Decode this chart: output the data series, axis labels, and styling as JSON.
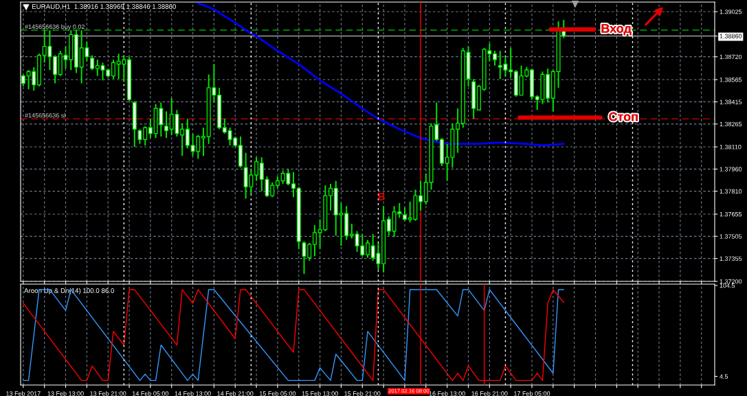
{
  "chart_data": [
    {
      "type": "candlestick",
      "title": "EURAUD,H1  1.38916 1.38969 1.38846 1.38860",
      "color": "#00e600",
      "grid": true,
      "tick_labels": "y",
      "x": [
        "2017-02-13T05:00",
        "2017-02-13T06:00",
        "2017-02-13T07:00",
        "2017-02-13T08:00",
        "2017-02-13T09:00",
        "2017-02-13T10:00",
        "2017-02-13T11:00",
        "2017-02-13T12:00",
        "2017-02-13T13:00",
        "2017-02-13T14:00",
        "2017-02-13T15:00",
        "2017-02-13T16:00",
        "2017-02-13T17:00",
        "2017-02-13T18:00",
        "2017-02-13T19:00",
        "2017-02-13T20:00",
        "2017-02-13T21:00",
        "2017-02-13T22:00",
        "2017-02-13T23:00",
        "2017-02-14T00:00",
        "2017-02-14T01:00",
        "2017-02-14T02:00",
        "2017-02-14T03:00",
        "2017-02-14T04:00",
        "2017-02-14T05:00",
        "2017-02-14T06:00",
        "2017-02-14T07:00",
        "2017-02-14T08:00",
        "2017-02-14T09:00",
        "2017-02-14T10:00",
        "2017-02-14T11:00",
        "2017-02-14T12:00",
        "2017-02-14T13:00",
        "2017-02-14T14:00",
        "2017-02-14T15:00",
        "2017-02-14T16:00",
        "2017-02-14T17:00",
        "2017-02-14T18:00",
        "2017-02-14T19:00",
        "2017-02-14T20:00",
        "2017-02-14T21:00",
        "2017-02-14T22:00",
        "2017-02-14T23:00",
        "2017-02-15T00:00",
        "2017-02-15T01:00",
        "2017-02-15T02:00",
        "2017-02-15T03:00",
        "2017-02-15T04:00",
        "2017-02-15T05:00",
        "2017-02-15T06:00",
        "2017-02-15T07:00",
        "2017-02-15T08:00",
        "2017-02-15T09:00",
        "2017-02-15T10:00",
        "2017-02-15T11:00",
        "2017-02-15T12:00",
        "2017-02-15T13:00",
        "2017-02-15T14:00",
        "2017-02-15T15:00",
        "2017-02-15T16:00",
        "2017-02-15T17:00",
        "2017-02-15T18:00",
        "2017-02-15T19:00",
        "2017-02-15T20:00",
        "2017-02-15T21:00",
        "2017-02-15T22:00",
        "2017-02-15T23:00",
        "2017-02-16T00:00",
        "2017-02-16T01:00",
        "2017-02-16T02:00",
        "2017-02-16T03:00",
        "2017-02-16T04:00",
        "2017-02-16T05:00",
        "2017-02-16T06:00",
        "2017-02-16T07:00",
        "2017-02-16T08:00",
        "2017-02-16T09:00",
        "2017-02-16T10:00",
        "2017-02-16T11:00",
        "2017-02-16T12:00",
        "2017-02-16T13:00",
        "2017-02-16T14:00",
        "2017-02-16T15:00",
        "2017-02-16T16:00",
        "2017-02-16T17:00",
        "2017-02-16T18:00",
        "2017-02-16T19:00",
        "2017-02-16T20:00",
        "2017-02-16T21:00",
        "2017-02-16T22:00",
        "2017-02-16T23:00",
        "2017-02-17T00:00",
        "2017-02-17T01:00",
        "2017-02-17T02:00",
        "2017-02-17T03:00",
        "2017-02-17T04:00",
        "2017-02-17T05:00",
        "2017-02-17T06:00",
        "2017-02-17T07:00",
        "2017-02-17T08:00",
        "2017-02-17T09:00",
        "2017-02-17T10:00",
        "2017-02-17T11:00"
      ],
      "ohlc": [
        [
          1.3859,
          1.386,
          1.3852,
          1.3854
        ],
        [
          1.3859,
          1.3863,
          1.385,
          1.3862
        ],
        [
          1.3862,
          1.3865,
          1.3849,
          1.3853
        ],
        [
          1.3853,
          1.3874,
          1.3852,
          1.3873
        ],
        [
          1.3873,
          1.389,
          1.3868,
          1.3879
        ],
        [
          1.3879,
          1.389,
          1.3863,
          1.3872
        ],
        [
          1.3872,
          1.3873,
          1.3854,
          1.386
        ],
        [
          1.386,
          1.3876,
          1.3859,
          1.3874
        ],
        [
          1.3873,
          1.3879,
          1.3864,
          1.387
        ],
        [
          1.387,
          1.389,
          1.3863,
          1.3887
        ],
        [
          1.3887,
          1.389,
          1.3861,
          1.3865
        ],
        [
          1.3865,
          1.389,
          1.3854,
          1.3878
        ],
        [
          1.3878,
          1.3882,
          1.3869,
          1.3872
        ],
        [
          1.3871,
          1.3873,
          1.3863,
          1.3864
        ],
        [
          1.3864,
          1.387,
          1.3859,
          1.3866
        ],
        [
          1.3866,
          1.3868,
          1.3856,
          1.3863
        ],
        [
          1.3863,
          1.3864,
          1.3858,
          1.3859
        ],
        [
          1.3859,
          1.387,
          1.3857,
          1.3868
        ],
        [
          1.3867,
          1.3874,
          1.3857,
          1.3869
        ],
        [
          1.3867,
          1.3873,
          1.3855,
          1.387
        ],
        [
          1.387,
          1.3872,
          1.3842,
          1.3843
        ],
        [
          1.3841,
          1.3842,
          1.3811,
          1.3823
        ],
        [
          1.3822,
          1.3823,
          1.3813,
          1.3816
        ],
        [
          1.3816,
          1.3825,
          1.3812,
          1.3824
        ],
        [
          1.3824,
          1.383,
          1.3817,
          1.382
        ],
        [
          1.382,
          1.384,
          1.3817,
          1.3837
        ],
        [
          1.3837,
          1.3841,
          1.3818,
          1.3826
        ],
        [
          1.3825,
          1.3835,
          1.3817,
          1.3822
        ],
        [
          1.3823,
          1.3844,
          1.3819,
          1.3833
        ],
        [
          1.3833,
          1.3836,
          1.3818,
          1.382
        ],
        [
          1.3819,
          1.3827,
          1.3805,
          1.3823
        ],
        [
          1.3823,
          1.383,
          1.381,
          1.3812
        ],
        [
          1.3812,
          1.382,
          1.3805,
          1.3808
        ],
        [
          1.3808,
          1.3819,
          1.3803,
          1.3818
        ],
        [
          1.3817,
          1.3824,
          1.3805,
          1.3818
        ],
        [
          1.3818,
          1.386,
          1.3813,
          1.3851
        ],
        [
          1.3851,
          1.3867,
          1.3841,
          1.3846
        ],
        [
          1.3846,
          1.3851,
          1.3823,
          1.3824
        ],
        [
          1.3824,
          1.383,
          1.382,
          1.3821
        ],
        [
          1.3822,
          1.3824,
          1.3812,
          1.3816
        ],
        [
          1.3817,
          1.3818,
          1.3811,
          1.3812
        ],
        [
          1.3812,
          1.3818,
          1.3797,
          1.3798
        ],
        [
          1.3797,
          1.3807,
          1.3776,
          1.3784
        ],
        [
          1.3784,
          1.3795,
          1.3779,
          1.3792
        ],
        [
          1.3792,
          1.3804,
          1.3788,
          1.3801
        ],
        [
          1.38,
          1.3804,
          1.3781,
          1.3789
        ],
        [
          1.3789,
          1.3791,
          1.3777,
          1.3778
        ],
        [
          1.3778,
          1.3787,
          1.3777,
          1.3785
        ],
        [
          1.3785,
          1.3791,
          1.3783,
          1.3788
        ],
        [
          1.3788,
          1.3795,
          1.3786,
          1.3793
        ],
        [
          1.3793,
          1.3796,
          1.3785,
          1.3786
        ],
        [
          1.3786,
          1.3794,
          1.3777,
          1.3783
        ],
        [
          1.3783,
          1.3784,
          1.3742,
          1.3747
        ],
        [
          1.3746,
          1.3747,
          1.3725,
          1.3737
        ],
        [
          1.3736,
          1.3746,
          1.3734,
          1.3745
        ],
        [
          1.3745,
          1.3758,
          1.3737,
          1.3753
        ],
        [
          1.3753,
          1.3762,
          1.3742,
          1.3755
        ],
        [
          1.3755,
          1.3785,
          1.3754,
          1.3778
        ],
        [
          1.3778,
          1.3786,
          1.3768,
          1.3783
        ],
        [
          1.3783,
          1.3788,
          1.3751,
          1.3765
        ],
        [
          1.3765,
          1.3773,
          1.3744,
          1.3766
        ],
        [
          1.3766,
          1.3771,
          1.3748,
          1.3751
        ],
        [
          1.3751,
          1.3759,
          1.3749,
          1.3752
        ],
        [
          1.3752,
          1.3754,
          1.374,
          1.3744
        ],
        [
          1.3744,
          1.3752,
          1.3737,
          1.3738
        ],
        [
          1.3738,
          1.3748,
          1.3736,
          1.3746
        ],
        [
          1.3744,
          1.3752,
          1.3734,
          1.3736
        ],
        [
          1.3739,
          1.3746,
          1.3728,
          1.3732
        ],
        [
          1.3732,
          1.3771,
          1.3726,
          1.3761
        ],
        [
          1.3762,
          1.3764,
          1.3751,
          1.3754
        ],
        [
          1.3754,
          1.3771,
          1.375,
          1.3767
        ],
        [
          1.3767,
          1.3773,
          1.3763,
          1.3766
        ],
        [
          1.3765,
          1.377,
          1.3761,
          1.3762
        ],
        [
          1.3762,
          1.3774,
          1.376,
          1.3763
        ],
        [
          1.3762,
          1.3782,
          1.3761,
          1.3778
        ],
        [
          1.3778,
          1.3788,
          1.3768,
          1.3774
        ],
        [
          1.3774,
          1.3793,
          1.3772,
          1.3787
        ],
        [
          1.3787,
          1.3827,
          1.3782,
          1.3825
        ],
        [
          1.3826,
          1.3841,
          1.3815,
          1.3816
        ],
        [
          1.3816,
          1.3817,
          1.3798,
          1.38
        ],
        [
          1.38,
          1.3813,
          1.3788,
          1.3804
        ],
        [
          1.3804,
          1.3827,
          1.3797,
          1.3823
        ],
        [
          1.3823,
          1.3837,
          1.3807,
          1.3827
        ],
        [
          1.3827,
          1.3878,
          1.3824,
          1.3876
        ],
        [
          1.3875,
          1.3879,
          1.3852,
          1.3857
        ],
        [
          1.3855,
          1.3857,
          1.383,
          1.3837
        ],
        [
          1.3836,
          1.3853,
          1.3836,
          1.3852
        ],
        [
          1.385,
          1.3878,
          1.3849,
          1.3877
        ],
        [
          1.3876,
          1.3881,
          1.3869,
          1.3874
        ],
        [
          1.3874,
          1.3876,
          1.3866,
          1.387
        ],
        [
          1.3866,
          1.3876,
          1.3857,
          1.3865
        ],
        [
          1.3867,
          1.3872,
          1.3859,
          1.3863
        ],
        [
          1.3863,
          1.3878,
          1.3858,
          1.3862
        ],
        [
          1.3862,
          1.3863,
          1.3845,
          1.3846
        ],
        [
          1.3846,
          1.3866,
          1.3846,
          1.3859
        ],
        [
          1.3859,
          1.3865,
          1.3858,
          1.3863
        ],
        [
          1.3863,
          1.3864,
          1.3843,
          1.3845
        ],
        [
          1.3845,
          1.3846,
          1.3836,
          1.3843
        ],
        [
          1.3843,
          1.3862,
          1.384,
          1.386
        ],
        [
          1.386,
          1.3864,
          1.3841,
          1.3844
        ],
        [
          1.3844,
          1.3863,
          1.3835,
          1.3862
        ],
        [
          1.3862,
          1.3896,
          1.3851,
          1.3891
        ],
        [
          1.38916,
          1.38969,
          1.38846,
          1.3886
        ]
      ],
      "series": [
        {
          "type": "line",
          "color": "#0000ff",
          "x": [
            "2017-02-14T14:00",
            "2017-02-14T15:00",
            "2017-02-14T17:00",
            "2017-02-14T21:00",
            "2017-02-14T23:00",
            "2017-02-15T01:00",
            "2017-02-15T05:00",
            "2017-02-15T09:00",
            "2017-02-15T13:00",
            "2017-02-15T17:00",
            "2017-02-15T21:00",
            "2017-02-16T00:00",
            "2017-02-16T04:00",
            "2017-02-16T08:00",
            "2017-02-16T10:00",
            "2017-02-16T13:00",
            "2017-02-16T19:00",
            "2017-02-16T23:00",
            "2017-02-17T04:00",
            "2017-02-17T07:00",
            "2017-02-17T11:00"
          ],
          "values": [
            1.3908,
            1.3907,
            1.3904,
            1.3895,
            1.389,
            1.3886,
            1.3876,
            1.3867,
            1.3856,
            1.3847,
            1.3837,
            1.383,
            1.3823,
            1.3817,
            1.3815,
            1.3813,
            1.3813,
            1.3814,
            1.3813,
            1.3812,
            1.3813
          ]
        }
      ],
      "xlim": [
        "2017-02-13T04:30",
        "2017-02-18T15:30"
      ],
      "ylim": [
        1.372,
        1.3909
      ],
      "xticks": [
        {
          "value": "2017-02-13T05:00",
          "label": null
        },
        {
          "value": "2017-02-13T09:00",
          "label": null
        },
        {
          "value": "2017-02-13T13:00",
          "label": null
        },
        {
          "value": "2017-02-13T17:00",
          "label": null
        },
        {
          "value": "2017-02-13T21:00",
          "label": null
        },
        {
          "value": "2017-02-14T01:00",
          "label": null
        },
        {
          "value": "2017-02-14T05:00",
          "label": null
        },
        {
          "value": "2017-02-14T09:00",
          "label": null
        },
        {
          "value": "2017-02-14T13:00",
          "label": null
        },
        {
          "value": "2017-02-14T17:00",
          "label": null
        },
        {
          "value": "2017-02-14T21:00",
          "label": null
        },
        {
          "value": "2017-02-15T01:00",
          "label": null
        },
        {
          "value": "2017-02-15T05:00",
          "label": null
        },
        {
          "value": "2017-02-15T09:00",
          "label": null
        },
        {
          "value": "2017-02-15T13:00",
          "label": null
        },
        {
          "value": "2017-02-15T17:00",
          "label": null
        },
        {
          "value": "2017-02-15T21:00",
          "label": null
        },
        {
          "value": "2017-02-16T01:00",
          "label": null
        },
        {
          "value": "2017-02-16T05:00",
          "label": null
        },
        {
          "value": "2017-02-16T09:00",
          "label": null
        },
        {
          "value": "2017-02-16T13:00",
          "label": null
        },
        {
          "value": "2017-02-16T17:00",
          "label": null
        },
        {
          "value": "2017-02-16T21:00",
          "label": null
        },
        {
          "value": "2017-02-17T01:00",
          "label": null
        },
        {
          "value": "2017-02-17T05:00",
          "label": null
        },
        {
          "value": "2017-02-17T09:00",
          "label": null
        },
        {
          "value": "2017-02-17T13:00",
          "label": null
        },
        {
          "value": "2017-02-17T17:00",
          "label": null
        },
        {
          "value": "2017-02-17T21:00",
          "label": null
        },
        {
          "value": "2017-02-18T01:00",
          "label": null
        },
        {
          "value": "2017-02-18T05:00",
          "label": null
        },
        {
          "value": "2017-02-18T09:00",
          "label": null
        },
        {
          "value": "2017-02-18T13:00",
          "label": null
        }
      ],
      "yticks": [
        1.39025,
        {
          "value": 1.3886,
          "label": "1.38860"
        },
        {
          "value": 1.3872,
          "label": "1.38720"
        },
        1.38565,
        1.38415,
        1.38265,
        {
          "value": 1.3811,
          "label": "1.38110"
        },
        {
          "value": 1.3796,
          "label": "1.37960"
        },
        {
          "value": 1.3781,
          "label": "1.37810"
        },
        1.37655,
        1.37505,
        1.37355,
        {
          "value": 1.372,
          "label": "1.37200"
        }
      ],
      "ref_lines": [
        {
          "axis": "y",
          "value": 1.389,
          "label": "#145656636 buy 0.02",
          "color": "#00c800",
          "line_style": "dashed"
        },
        {
          "axis": "y",
          "value": 1.383,
          "label": "#145656636 sl",
          "color": "#e00000",
          "line_style": "dashed"
        },
        {
          "axis": "y",
          "value": 1.3886,
          "color": "#a0a0a0",
          "line_style": "solid"
        },
        {
          "axis": "x",
          "value": "2017-02-16T08:00",
          "color": "#ff0000",
          "line_style": "solid"
        },
        {
          "axis": "x",
          "value": "2017-02-14T00:00",
          "color": "#ffffff",
          "line_style": "dotted"
        },
        {
          "axis": "x",
          "value": "2017-02-15T00:00",
          "color": "#ffffff",
          "line_style": "dotted"
        },
        {
          "axis": "x",
          "value": "2017-02-16T00:00",
          "color": "#ffffff",
          "line_style": "dotted"
        },
        {
          "axis": "x",
          "value": "2017-02-17T00:00",
          "color": "#ffffff",
          "line_style": "dotted"
        },
        {
          "axis": "x",
          "value": "2017-02-18T00:00",
          "color": "#ffffff",
          "line_style": "dotted"
        }
      ],
      "annotations": [
        "B",
        "Вход",
        "Стоп"
      ]
    },
    {
      "type": "line",
      "title": "Aroon Up & Dn(14) 100.0 86.0",
      "grid": "x",
      "series": [
        {
          "type": "line",
          "color": "#3399ff",
          "x": [
            "2017-02-13T05:00",
            "2017-02-13T06:00",
            "2017-02-13T08:00",
            "2017-02-13T10:00",
            "2017-02-13T13:00",
            "2017-02-13T14:00",
            "2017-02-14T03:00",
            "2017-02-14T04:00",
            "2017-02-14T05:00",
            "2017-02-14T06:00",
            "2017-02-14T07:00",
            "2017-02-14T12:00",
            "2017-02-14T13:00",
            "2017-02-14T14:00",
            "2017-02-14T16:00",
            "2017-02-14T17:00",
            "2017-02-15T07:00",
            "2017-02-15T12:00",
            "2017-02-15T13:00",
            "2017-02-15T15:00",
            "2017-02-15T16:00",
            "2017-02-15T20:00",
            "2017-02-15T21:00",
            "2017-02-15T22:00",
            "2017-02-16T05:00",
            "2017-02-16T06:00",
            "2017-02-16T11:00",
            "2017-02-16T15:00",
            "2017-02-16T16:00",
            "2017-02-16T17:00",
            "2017-02-16T20:00",
            "2017-02-16T21:00",
            "2017-02-17T09:00",
            "2017-02-17T10:00",
            "2017-02-17T11:00"
          ],
          "values": [
            0,
            0,
            100,
            100,
            77,
            100,
            0,
            7,
            0,
            0,
            39,
            0,
            7,
            0,
            100,
            100,
            0,
            0,
            14,
            0,
            29,
            0,
            0,
            54,
            0,
            100,
            100,
            71,
            100,
            100,
            77,
            100,
            8,
            100,
            100
          ]
        },
        {
          "type": "line",
          "color": "#ff0000",
          "x": [
            "2017-02-13T05:00",
            "2017-02-13T16:00",
            "2017-02-13T17:00",
            "2017-02-13T18:00",
            "2017-02-13T20:00",
            "2017-02-13T21:00",
            "2017-02-13T22:00",
            "2017-02-14T00:00",
            "2017-02-14T01:00",
            "2017-02-14T02:00",
            "2017-02-14T10:00",
            "2017-02-14T11:00",
            "2017-02-14T13:00",
            "2017-02-14T14:00",
            "2017-02-14T21:00",
            "2017-02-14T22:00",
            "2017-02-14T23:00",
            "2017-02-15T08:00",
            "2017-02-15T09:00",
            "2017-02-15T10:00",
            "2017-02-15T23:00",
            "2017-02-16T00:00",
            "2017-02-16T01:00",
            "2017-02-16T14:00",
            "2017-02-16T15:00",
            "2017-02-16T16:00",
            "2017-02-16T17:00",
            "2017-02-16T19:00",
            "2017-02-16T23:00",
            "2017-02-17T00:00",
            "2017-02-17T02:00",
            "2017-02-17T05:00",
            "2017-02-17T06:00",
            "2017-02-17T07:00",
            "2017-02-17T08:00",
            "2017-02-17T09:00",
            "2017-02-17T11:00"
          ],
          "values": [
            85,
            0,
            0,
            16,
            0,
            0,
            54,
            39,
            100,
            100,
            39,
            100,
            85,
            100,
            46,
            100,
            100,
            31,
            100,
            100,
            0,
            100,
            100,
            0,
            8,
            0,
            16,
            0,
            0,
            16,
            0,
            0,
            8,
            0,
            85,
            100,
            86
          ]
        }
      ],
      "xlim": [
        "2017-02-13T04:30",
        "2017-02-18T15:30"
      ],
      "ylim": [
        -5,
        106
      ],
      "yticks": [
        4.5,
        104.5
      ],
      "xticks": [
        {
          "value": "2017-02-13T05:00",
          "label": "13 Feb 2017"
        },
        {
          "value": "2017-02-13T09:00",
          "label": null
        },
        {
          "value": "2017-02-13T13:00",
          "label": "13 Feb 13:00"
        },
        {
          "value": "2017-02-13T17:00",
          "label": null
        },
        {
          "value": "2017-02-13T21:00",
          "label": "13 Feb 21:00"
        },
        {
          "value": "2017-02-14T01:00",
          "label": null
        },
        {
          "value": "2017-02-14T05:00",
          "label": "14 Feb 05:00"
        },
        {
          "value": "2017-02-14T09:00",
          "label": null
        },
        {
          "value": "2017-02-14T13:00",
          "label": "14 Feb 13:00"
        },
        {
          "value": "2017-02-14T17:00",
          "label": null
        },
        {
          "value": "2017-02-14T21:00",
          "label": "14 Feb 21:00"
        },
        {
          "value": "2017-02-15T01:00",
          "label": null
        },
        {
          "value": "2017-02-15T05:00",
          "label": "15 Feb 05:00"
        },
        {
          "value": "2017-02-15T09:00",
          "label": null
        },
        {
          "value": "2017-02-15T13:00",
          "label": "15 Feb 13:00"
        },
        {
          "value": "2017-02-15T17:00",
          "label": null
        },
        {
          "value": "2017-02-15T21:00",
          "label": "15 Feb 21:00"
        },
        {
          "value": "2017-02-16T01:00",
          "label": null
        },
        {
          "value": "2017-02-16T05:00",
          "label": null
        },
        {
          "value": "2017-02-16T09:00",
          "label": null
        },
        {
          "value": "2017-02-16T13:00",
          "label": "16 Feb 13:00"
        },
        {
          "value": "2017-02-16T17:00",
          "label": null
        },
        {
          "value": "2017-02-16T21:00",
          "label": "16 Feb 21:00"
        },
        {
          "value": "2017-02-17T01:00",
          "label": null
        },
        {
          "value": "2017-02-17T05:00",
          "label": "17 Feb 05:00"
        },
        {
          "value": "2017-02-17T09:00",
          "label": null
        },
        {
          "value": "2017-02-17T13:00",
          "label": null
        },
        {
          "value": "2017-02-17T17:00",
          "label": null
        },
        {
          "value": "2017-02-17T21:00",
          "label": null
        },
        {
          "value": "2017-02-18T01:00",
          "label": null
        },
        {
          "value": "2017-02-18T05:00",
          "label": null
        },
        {
          "value": "2017-02-18T09:00",
          "label": null
        },
        {
          "value": "2017-02-18T13:00",
          "label": null
        }
      ],
      "ref_lines": [
        {
          "axis": "x",
          "value": "2017-02-16T08:00",
          "label": "2017.02.16 08:00",
          "color": "#ff0000",
          "line_style": "solid"
        },
        {
          "axis": "x",
          "value": "2017-02-16T20:00",
          "color": "#ff0000",
          "line_style": "solid"
        },
        {
          "axis": "x",
          "value": "2017-02-14T00:00",
          "color": "#ffffff",
          "line_style": "dotted"
        },
        {
          "axis": "x",
          "value": "2017-02-15T00:00",
          "color": "#ffffff",
          "line_style": "dotted"
        },
        {
          "axis": "x",
          "value": "2017-02-16T00:00",
          "color": "#ffffff",
          "line_style": "dotted"
        },
        {
          "axis": "x",
          "value": "2017-02-17T00:00",
          "color": "#ffffff",
          "line_style": "dotted"
        },
        {
          "axis": "x",
          "value": "2017-02-18T00:00",
          "color": "#ffffff",
          "line_style": "dotted"
        }
      ]
    }
  ]
}
